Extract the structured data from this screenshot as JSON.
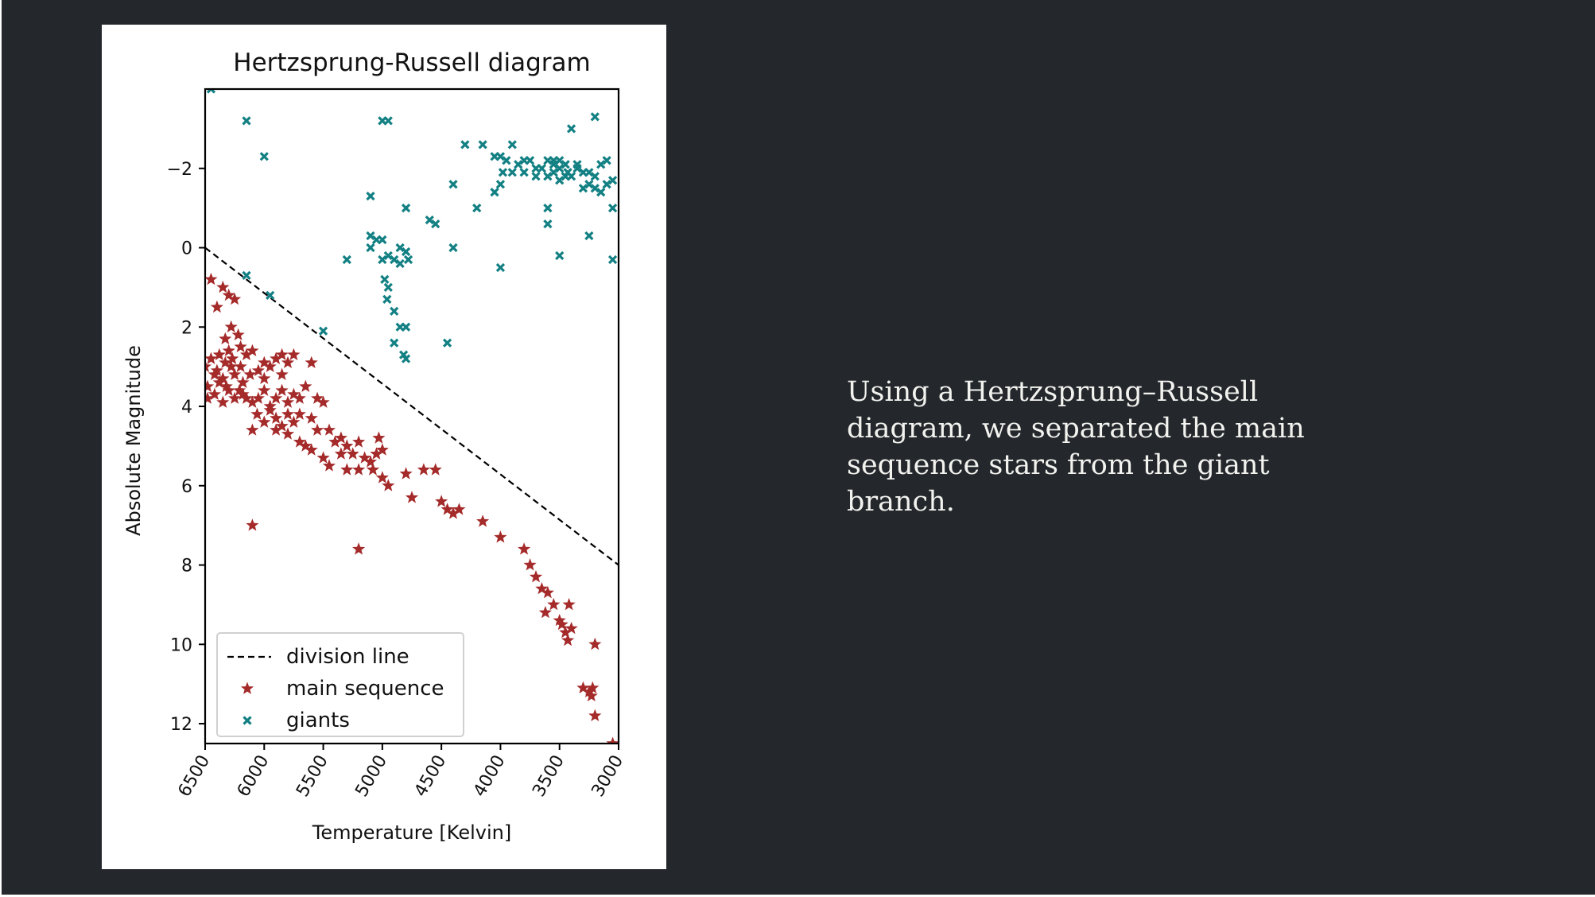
{
  "slide": {
    "caption": "Using a Hertzsprung–Russell diagram, we separated the main sequence stars from the giant branch."
  },
  "colors": {
    "background": "#24282c",
    "caption_text": "#f2f2ef",
    "main_sequence": "#a52a2a",
    "giants": "#138083",
    "division_line": "#000000"
  },
  "chart_data": {
    "type": "scatter",
    "title": "Hertzsprung-Russell diagram",
    "xlabel": "Temperature [Kelvin]",
    "ylabel": "Absolute Magnitude",
    "xlim": [
      6500,
      3000
    ],
    "ylim": [
      12.5,
      -4
    ],
    "xticks": [
      6500,
      6000,
      5500,
      5000,
      4500,
      4000,
      3500,
      3000
    ],
    "xtick_labels": [
      "6500",
      "6000",
      "5500",
      "5000",
      "4500",
      "4000",
      "3500",
      "3000"
    ],
    "yticks": [
      -2,
      0,
      2,
      4,
      6,
      8,
      10,
      12
    ],
    "ytick_labels": [
      "−2",
      "0",
      "2",
      "4",
      "6",
      "8",
      "10",
      "12"
    ],
    "grid": false,
    "legend_position": "lower-left",
    "lines": [
      {
        "name": "division line",
        "style": "dashed",
        "color": "#000000",
        "x": [
          6500,
          3000
        ],
        "y": [
          0,
          8
        ]
      }
    ],
    "series": [
      {
        "name": "main sequence",
        "marker": "star",
        "color": "#a52a2a",
        "points": [
          [
            6450,
            0.8
          ],
          [
            6400,
            1.5
          ],
          [
            6350,
            1.0
          ],
          [
            6300,
            1.2
          ],
          [
            6250,
            1.3
          ],
          [
            6280,
            2.0
          ],
          [
            6220,
            2.2
          ],
          [
            6330,
            2.3
          ],
          [
            6300,
            2.6
          ],
          [
            6380,
            2.7
          ],
          [
            6200,
            2.5
          ],
          [
            6150,
            2.7
          ],
          [
            6100,
            2.6
          ],
          [
            6450,
            2.8
          ],
          [
            6500,
            3.0
          ],
          [
            6400,
            3.1
          ],
          [
            6350,
            3.3
          ],
          [
            6280,
            3.0
          ],
          [
            6250,
            3.2
          ],
          [
            6200,
            3.0
          ],
          [
            6180,
            3.4
          ],
          [
            6120,
            3.2
          ],
          [
            6050,
            3.1
          ],
          [
            6000,
            2.9
          ],
          [
            5950,
            3.0
          ],
          [
            5900,
            2.8
          ],
          [
            5850,
            2.7
          ],
          [
            5800,
            2.9
          ],
          [
            5750,
            2.7
          ],
          [
            5600,
            2.9
          ],
          [
            6480,
            3.5
          ],
          [
            6420,
            3.7
          ],
          [
            6350,
            3.9
          ],
          [
            6300,
            3.6
          ],
          [
            6250,
            3.8
          ],
          [
            6180,
            3.7
          ],
          [
            6100,
            3.9
          ],
          [
            6050,
            3.8
          ],
          [
            6000,
            3.6
          ],
          [
            5950,
            4.0
          ],
          [
            5900,
            3.8
          ],
          [
            5850,
            3.6
          ],
          [
            5800,
            3.9
          ],
          [
            5750,
            3.7
          ],
          [
            5700,
            3.8
          ],
          [
            6480,
            3.8
          ],
          [
            6380,
            3.4
          ],
          [
            6320,
            3.5
          ],
          [
            6210,
            3.6
          ],
          [
            6060,
            4.2
          ],
          [
            6000,
            4.4
          ],
          [
            5950,
            4.1
          ],
          [
            5900,
            4.3
          ],
          [
            5850,
            4.5
          ],
          [
            5800,
            4.2
          ],
          [
            5750,
            4.4
          ],
          [
            5700,
            4.2
          ],
          [
            5600,
            4.3
          ],
          [
            5550,
            3.8
          ],
          [
            5500,
            3.9
          ],
          [
            5450,
            4.6
          ],
          [
            5400,
            4.9
          ],
          [
            5350,
            4.8
          ],
          [
            5300,
            5.0
          ],
          [
            5250,
            5.2
          ],
          [
            5200,
            4.9
          ],
          [
            5150,
            5.3
          ],
          [
            5100,
            5.4
          ],
          [
            5050,
            5.2
          ],
          [
            5000,
            5.1
          ],
          [
            5030,
            4.8
          ],
          [
            5080,
            5.6
          ],
          [
            5200,
            5.6
          ],
          [
            5300,
            5.6
          ],
          [
            5500,
            5.3
          ],
          [
            5600,
            5.1
          ],
          [
            5700,
            4.9
          ],
          [
            5800,
            4.7
          ],
          [
            5900,
            4.6
          ],
          [
            6100,
            4.6
          ],
          [
            5650,
            5.0
          ],
          [
            5550,
            4.6
          ],
          [
            5450,
            5.5
          ],
          [
            5350,
            5.2
          ],
          [
            5000,
            5.8
          ],
          [
            4950,
            6.0
          ],
          [
            4800,
            5.7
          ],
          [
            4750,
            6.3
          ],
          [
            4650,
            5.6
          ],
          [
            4550,
            5.6
          ],
          [
            4500,
            6.4
          ],
          [
            4450,
            6.6
          ],
          [
            4400,
            6.7
          ],
          [
            4350,
            6.6
          ],
          [
            4150,
            6.9
          ],
          [
            4000,
            7.3
          ],
          [
            3800,
            7.6
          ],
          [
            3750,
            8.0
          ],
          [
            3700,
            8.3
          ],
          [
            3650,
            8.6
          ],
          [
            3600,
            8.7
          ],
          [
            3620,
            9.2
          ],
          [
            3550,
            9.0
          ],
          [
            3500,
            9.4
          ],
          [
            3480,
            9.5
          ],
          [
            3450,
            9.7
          ],
          [
            3400,
            9.6
          ],
          [
            3430,
            9.9
          ],
          [
            3420,
            9.0
          ],
          [
            3200,
            10.0
          ],
          [
            3300,
            11.1
          ],
          [
            3250,
            11.2
          ],
          [
            3220,
            11.1
          ],
          [
            3230,
            11.3
          ],
          [
            3200,
            11.8
          ],
          [
            3050,
            12.5
          ],
          [
            6100,
            7.0
          ],
          [
            5650,
            3.5
          ],
          [
            5200,
            7.6
          ],
          [
            5850,
            3.2
          ],
          [
            6000,
            3.3
          ],
          [
            6150,
            3.8
          ],
          [
            6420,
            3.2
          ],
          [
            6330,
            2.9
          ],
          [
            6270,
            2.8
          ]
        ]
      },
      {
        "name": "giants",
        "marker": "x",
        "color": "#138083",
        "points": [
          [
            6450,
            -4.0
          ],
          [
            6150,
            -3.2
          ],
          [
            6000,
            -2.3
          ],
          [
            5000,
            -3.2
          ],
          [
            4950,
            -3.2
          ],
          [
            3400,
            -3.0
          ],
          [
            3200,
            -3.3
          ],
          [
            4400,
            -1.6
          ],
          [
            5100,
            -1.3
          ],
          [
            4800,
            -1.0
          ],
          [
            4600,
            -0.7
          ],
          [
            4550,
            -0.6
          ],
          [
            4200,
            -1.0
          ],
          [
            4050,
            -1.4
          ],
          [
            4000,
            -1.6
          ],
          [
            3600,
            -1.0
          ],
          [
            3600,
            -0.6
          ],
          [
            3250,
            -0.3
          ],
          [
            3050,
            -1.0
          ],
          [
            5100,
            -0.3
          ],
          [
            5050,
            -0.2
          ],
          [
            5000,
            -0.2
          ],
          [
            5100,
            0.0
          ],
          [
            5000,
            0.3
          ],
          [
            4950,
            0.2
          ],
          [
            4850,
            0.0
          ],
          [
            4800,
            0.1
          ],
          [
            4780,
            0.3
          ],
          [
            4900,
            0.3
          ],
          [
            4850,
            0.4
          ],
          [
            4400,
            0.0
          ],
          [
            4000,
            0.5
          ],
          [
            3500,
            0.2
          ],
          [
            3050,
            0.3
          ],
          [
            5300,
            0.3
          ],
          [
            4980,
            0.8
          ],
          [
            4950,
            1.0
          ],
          [
            4960,
            1.3
          ],
          [
            4900,
            1.6
          ],
          [
            4850,
            2.0
          ],
          [
            4800,
            2.0
          ],
          [
            4820,
            2.7
          ],
          [
            4900,
            2.4
          ],
          [
            4800,
            2.8
          ],
          [
            4450,
            2.4
          ],
          [
            5500,
            2.1
          ],
          [
            6150,
            0.7
          ],
          [
            5950,
            1.2
          ],
          [
            4300,
            -2.6
          ],
          [
            4150,
            -2.6
          ],
          [
            4050,
            -2.3
          ],
          [
            3900,
            -2.6
          ],
          [
            3850,
            -2.1
          ],
          [
            3800,
            -1.9
          ],
          [
            3750,
            -2.2
          ],
          [
            3700,
            -2.0
          ],
          [
            3650,
            -2.0
          ],
          [
            3600,
            -2.2
          ],
          [
            3550,
            -1.9
          ],
          [
            3500,
            -2.0
          ],
          [
            3450,
            -2.1
          ],
          [
            3400,
            -1.8
          ],
          [
            3350,
            -2.0
          ],
          [
            3300,
            -1.9
          ],
          [
            3250,
            -1.9
          ],
          [
            3200,
            -1.8
          ],
          [
            3150,
            -2.1
          ],
          [
            3100,
            -1.6
          ],
          [
            3050,
            -1.7
          ],
          [
            3100,
            -2.2
          ],
          [
            3150,
            -1.4
          ],
          [
            3250,
            -1.6
          ],
          [
            3500,
            -1.7
          ],
          [
            3550,
            -2.2
          ],
          [
            3950,
            -2.2
          ],
          [
            3980,
            -1.9
          ],
          [
            3900,
            -1.9
          ],
          [
            3800,
            -2.2
          ],
          [
            3700,
            -1.8
          ],
          [
            3600,
            -1.8
          ],
          [
            3450,
            -1.8
          ],
          [
            3350,
            -2.1
          ],
          [
            3300,
            -1.5
          ],
          [
            3200,
            -1.5
          ],
          [
            3550,
            -2.1
          ],
          [
            3500,
            -2.2
          ],
          [
            3430,
            -1.9
          ],
          [
            4000,
            -2.3
          ]
        ]
      }
    ]
  }
}
